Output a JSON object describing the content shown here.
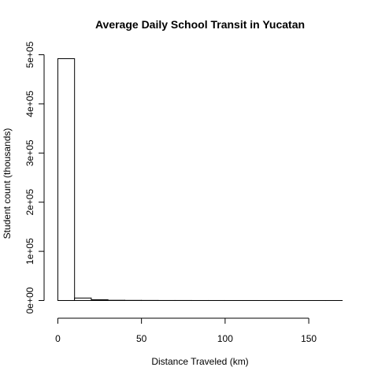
{
  "chart_data": {
    "type": "bar",
    "title": "Average Daily School Transit in Yucatan",
    "xlabel": "Distance Traveled (km)",
    "ylabel": "Student count (thousands)",
    "xlim": [
      0,
      170
    ],
    "ylim": [
      0,
      500000
    ],
    "x_ticks": [
      0,
      50,
      100,
      150
    ],
    "x_tick_labels": [
      "0",
      "50",
      "100",
      "150"
    ],
    "y_ticks": [
      0,
      100000,
      200000,
      300000,
      400000,
      500000
    ],
    "y_tick_labels": [
      "0e+00",
      "1e+05",
      "2e+05",
      "3e+05",
      "4e+05",
      "5e+05"
    ],
    "bins": [
      {
        "x0": 0,
        "x1": 10,
        "count": 492000
      },
      {
        "x0": 10,
        "x1": 20,
        "count": 5000
      },
      {
        "x0": 20,
        "x1": 30,
        "count": 1500
      },
      {
        "x0": 30,
        "x1": 40,
        "count": 500
      },
      {
        "x0": 40,
        "x1": 50,
        "count": 300
      },
      {
        "x0": 50,
        "x1": 60,
        "count": 200
      },
      {
        "x0": 60,
        "x1": 70,
        "count": 100
      },
      {
        "x0": 70,
        "x1": 80,
        "count": 100
      },
      {
        "x0": 80,
        "x1": 90,
        "count": 50
      },
      {
        "x0": 90,
        "x1": 100,
        "count": 50
      },
      {
        "x0": 100,
        "x1": 110,
        "count": 30
      },
      {
        "x0": 110,
        "x1": 120,
        "count": 30
      },
      {
        "x0": 120,
        "x1": 130,
        "count": 20
      },
      {
        "x0": 130,
        "x1": 140,
        "count": 20
      },
      {
        "x0": 140,
        "x1": 150,
        "count": 10
      },
      {
        "x0": 150,
        "x1": 160,
        "count": 10
      },
      {
        "x0": 160,
        "x1": 170,
        "count": 10
      }
    ],
    "grid": false,
    "legend": "none",
    "bar_fill": "#ffffff",
    "bar_stroke": "#000000"
  }
}
